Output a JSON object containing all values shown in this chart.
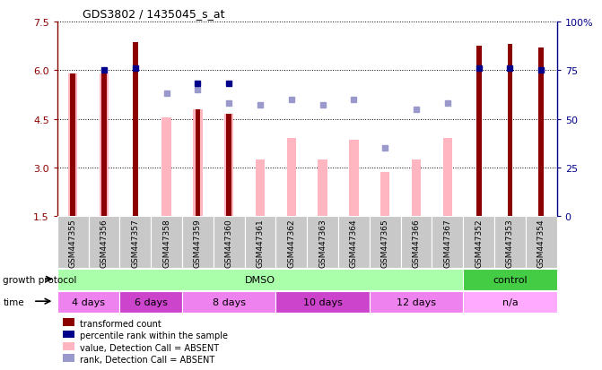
{
  "title": "GDS3802 / 1435045_s_at",
  "samples": [
    "GSM447355",
    "GSM447356",
    "GSM447357",
    "GSM447358",
    "GSM447359",
    "GSM447360",
    "GSM447361",
    "GSM447362",
    "GSM447363",
    "GSM447364",
    "GSM447365",
    "GSM447366",
    "GSM447367",
    "GSM447352",
    "GSM447353",
    "GSM447354"
  ],
  "transformed_count": [
    5.9,
    5.9,
    6.85,
    null,
    4.8,
    4.65,
    null,
    null,
    null,
    null,
    null,
    null,
    null,
    6.75,
    6.8,
    6.7
  ],
  "percentile_rank": [
    null,
    75,
    76,
    null,
    68,
    68,
    null,
    null,
    null,
    null,
    null,
    null,
    null,
    76,
    76,
    75
  ],
  "absent_value": [
    5.9,
    5.9,
    null,
    4.55,
    4.8,
    4.65,
    3.25,
    3.9,
    3.25,
    3.85,
    2.85,
    3.25,
    3.9,
    null,
    null,
    null
  ],
  "absent_rank": [
    null,
    null,
    null,
    63,
    65,
    58,
    57,
    60,
    57,
    60,
    35,
    55,
    58,
    null,
    null,
    null
  ],
  "ylim_left": [
    1.5,
    7.5
  ],
  "ylim_right": [
    0,
    100
  ],
  "yticks_left": [
    1.5,
    3.0,
    4.5,
    6.0,
    7.5
  ],
  "yticks_right": [
    0,
    25,
    50,
    75,
    100
  ],
  "bar_color_dark": "#8B0000",
  "bar_color_light": "#FFB6C1",
  "dot_color_dark": "#00008B",
  "dot_color_light": "#9999CC",
  "growth_protocol_groups": [
    {
      "label": "DMSO",
      "start": 0,
      "end": 13,
      "color": "#AAFFAA"
    },
    {
      "label": "control",
      "start": 13,
      "end": 16,
      "color": "#44CC44"
    }
  ],
  "time_groups": [
    {
      "label": "4 days",
      "start": 0,
      "end": 2,
      "color": "#EE82EE"
    },
    {
      "label": "6 days",
      "start": 2,
      "end": 4,
      "color": "#CC44CC"
    },
    {
      "label": "8 days",
      "start": 4,
      "end": 7,
      "color": "#EE82EE"
    },
    {
      "label": "10 days",
      "start": 7,
      "end": 10,
      "color": "#CC44CC"
    },
    {
      "label": "12 days",
      "start": 10,
      "end": 13,
      "color": "#EE82EE"
    },
    {
      "label": "n/a",
      "start": 13,
      "end": 16,
      "color": "#FFAAFF"
    }
  ],
  "legend_items": [
    {
      "label": "transformed count",
      "color": "#8B0000"
    },
    {
      "label": "percentile rank within the sample",
      "color": "#00008B"
    },
    {
      "label": "value, Detection Call = ABSENT",
      "color": "#FFB6C1"
    },
    {
      "label": "rank, Detection Call = ABSENT",
      "color": "#9999CC"
    }
  ],
  "bg_color": "#C8C8C8"
}
